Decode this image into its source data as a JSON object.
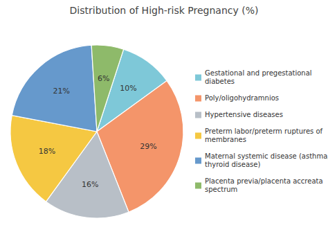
{
  "chart_data": {
    "type": "pie",
    "title": "Distribution of High-risk Pregnancy (%)",
    "categories": [
      "Gestational and pregestational\ndiabetes",
      "Poly/oligohydramnios",
      "Hypertensive diseases",
      "Preterm labor/preterm ruptures of\nmembranes",
      "Maternal systemic disease (asthma,\nthyroid disease)",
      "Placenta previa/placenta accreata\nspectrum"
    ],
    "values": [
      10,
      29,
      16,
      18,
      21,
      6
    ],
    "value_labels": [
      "10%",
      "29%",
      "16%",
      "18%",
      "21%",
      "6%"
    ],
    "colors": [
      "#7ec8d8",
      "#f4956a",
      "#b8bfc7",
      "#f5c842",
      "#6699cc",
      "#8eba6a"
    ],
    "data_labels": true,
    "legend": "right"
  }
}
